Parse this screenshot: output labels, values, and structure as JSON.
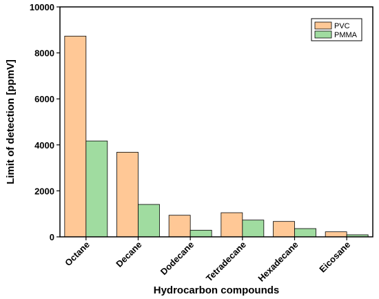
{
  "chart_data": {
    "type": "bar",
    "title": "",
    "xlabel": "Hydrocarbon compounds",
    "ylabel": "Limit of detection [ppmV]",
    "categories": [
      "Octane",
      "Decane",
      "Dodecane",
      "Tetradecane",
      "Hexadecane",
      "Eicosane"
    ],
    "series": [
      {
        "name": "PVC",
        "color": "#FFC896",
        "values": [
          8730,
          3680,
          940,
          1050,
          670,
          220
        ]
      },
      {
        "name": "PMMA",
        "color": "#A0DCA0",
        "values": [
          4170,
          1410,
          290,
          730,
          360,
          90
        ]
      }
    ],
    "ylim": [
      0,
      10000
    ],
    "yticks": [
      0,
      2000,
      4000,
      6000,
      8000,
      10000
    ],
    "ytick_labels": [
      "0",
      "2000",
      "4000",
      "6000",
      "8000",
      "10000"
    ],
    "grid": false,
    "legend_position": "top-right"
  }
}
